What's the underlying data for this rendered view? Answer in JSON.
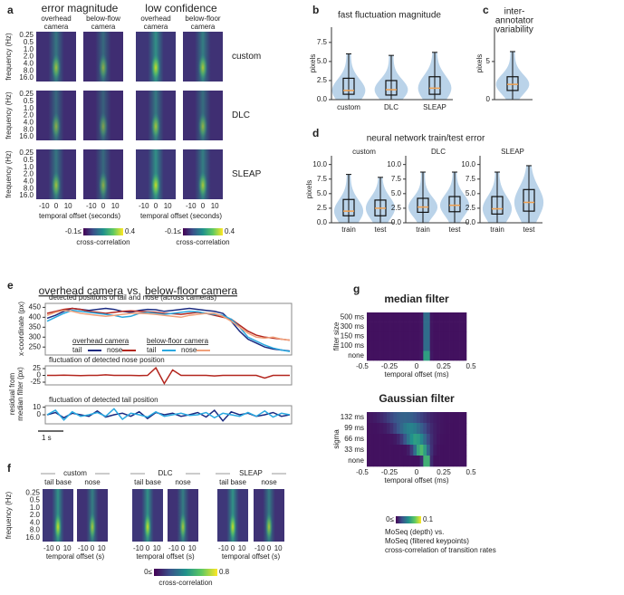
{
  "panel_a": {
    "label": "a",
    "headers": [
      "error magnitude",
      "low confidence"
    ],
    "columns": [
      [
        "overhead",
        "camera"
      ],
      [
        "below-flow",
        "camera"
      ],
      [
        "overhead",
        "camera"
      ],
      [
        "below-floor",
        "camera"
      ]
    ],
    "rows": [
      "custom",
      "DLC",
      "SLEAP"
    ],
    "y_label": "frequency (Hz)",
    "y_ticks": [
      "0.25",
      "0.5",
      "1.0",
      "2.0",
      "4.0",
      "8.0",
      "16.0"
    ],
    "x_ticks": [
      "-10",
      "0",
      "10"
    ],
    "x_label": "temporal offset (seconds)",
    "colorbar": {
      "min": "-0.1≤",
      "max": "0.4",
      "label": "cross-correlation"
    }
  },
  "panel_b": {
    "label": "b",
    "title": "fast fluctuation magnitude",
    "y_label": "pixels",
    "ylim": [
      0,
      9.5
    ],
    "yticks": [
      {
        "value": 0,
        "label": "0.0"
      },
      {
        "value": 2.5,
        "label": "2.5"
      },
      {
        "value": 5,
        "label": "5.0"
      },
      {
        "value": 7.5,
        "label": "7.5"
      }
    ],
    "categories": [
      "custom",
      "DLC",
      "SLEAP"
    ],
    "boxes": [
      {
        "q1": 0.7,
        "median": 1.2,
        "q3": 2.8,
        "low": 0,
        "high": 6
      },
      {
        "q1": 0.6,
        "median": 1.3,
        "q3": 2.5,
        "low": 0,
        "high": 5.8
      },
      {
        "q1": 0.7,
        "median": 1.5,
        "q3": 3,
        "low": 0,
        "high": 6.2
      }
    ]
  },
  "panel_c": {
    "label": "c",
    "title": [
      "inter-",
      "annotator",
      "variability"
    ],
    "y_label": "pixels",
    "ylim": [
      0,
      9.5
    ],
    "yticks": [
      0,
      5
    ],
    "boxes": [
      {
        "q1": 1.2,
        "median": 2,
        "q3": 3,
        "low": 0,
        "high": 6.3
      }
    ]
  },
  "panel_d": {
    "label": "d",
    "title": "neural network train/test error",
    "y_label": "pixels",
    "ylim": [
      0,
      11.5
    ],
    "yticks": [
      {
        "value": 0,
        "label": "0.0"
      },
      {
        "value": 2.5,
        "label": "2.5"
      },
      {
        "value": 5,
        "label": "5.0"
      },
      {
        "value": 7.5,
        "label": "7.5"
      },
      {
        "value": 10,
        "label": "10.0"
      }
    ],
    "subplots": [
      {
        "title": "custom",
        "categories": [
          "train",
          "test"
        ],
        "boxes": [
          {
            "q1": 1.2,
            "median": 2,
            "q3": 4,
            "low": 0,
            "high": 8.3
          },
          {
            "q1": 1.2,
            "median": 2.5,
            "q3": 3.9,
            "low": 0,
            "high": 7.8
          }
        ]
      },
      {
        "title": "DLC",
        "categories": [
          "train",
          "test"
        ],
        "boxes": [
          {
            "q1": 1.8,
            "median": 2.7,
            "q3": 4.2,
            "low": 0,
            "high": 8.7
          },
          {
            "q1": 1.9,
            "median": 3,
            "q3": 4.5,
            "low": 0,
            "high": 8.7
          }
        ]
      },
      {
        "title": "SLEAP",
        "categories": [
          "train",
          "test"
        ],
        "boxes": [
          {
            "q1": 1.5,
            "median": 2.4,
            "q3": 4.5,
            "low": 0,
            "high": 8.7
          },
          {
            "q1": 2,
            "median": 3.5,
            "q3": 5.7,
            "low": 0,
            "high": 9.8
          }
        ]
      }
    ]
  },
  "panel_e": {
    "label": "e",
    "title": [
      "overhead camera",
      "vs.",
      "below-floor camera"
    ],
    "positions": {
      "title": "detected positions of tail and nose (across cameras)",
      "y_label": "x-coordinate (px)",
      "ylim": [
        210,
        470
      ],
      "yticks": [
        250,
        300,
        350,
        400,
        450
      ],
      "legend": [
        {
          "name": "overhead camera",
          "entries": [
            "tail",
            "nose"
          ]
        },
        {
          "name": "below-floor camera",
          "entries": [
            "tail",
            "nose"
          ]
        }
      ],
      "series": [
        {
          "color": "#1a2a80",
          "values": [
            395,
            410,
            430,
            445,
            440,
            435,
            440,
            445,
            440,
            430,
            425,
            435,
            440,
            438,
            430,
            435,
            440,
            445,
            440,
            435,
            430,
            420,
            380,
            330,
            290,
            270,
            250,
            240,
            235,
            230
          ]
        },
        {
          "color": "#b3261e",
          "values": [
            420,
            430,
            440,
            445,
            440,
            430,
            425,
            420,
            425,
            430,
            432,
            430,
            428,
            425,
            420,
            418,
            415,
            420,
            425,
            420,
            410,
            400,
            390,
            360,
            330,
            310,
            300,
            295,
            290,
            285
          ]
        },
        {
          "color": "#29a8e0",
          "values": [
            380,
            400,
            420,
            435,
            430,
            425,
            420,
            415,
            410,
            400,
            405,
            420,
            425,
            420,
            415,
            420,
            425,
            430,
            428,
            420,
            415,
            410,
            390,
            350,
            300,
            280,
            260,
            245,
            235,
            228
          ]
        },
        {
          "color": "#f0a07a",
          "values": [
            410,
            425,
            435,
            430,
            420,
            415,
            410,
            405,
            410,
            415,
            420,
            420,
            418,
            415,
            410,
            405,
            400,
            410,
            415,
            420,
            420,
            405,
            380,
            350,
            320,
            300,
            295,
            300,
            290,
            285
          ]
        }
      ]
    },
    "nose": {
      "title": "fluctuation of detected nose position",
      "ylim": [
        -35,
        35
      ],
      "yticks": [
        25,
        0,
        -25
      ],
      "series": [
        {
          "color": "#b3261e",
          "values": [
            0,
            0,
            1,
            0,
            -1,
            0,
            0,
            2,
            0,
            0,
            0,
            -1,
            0,
            28,
            -30,
            20,
            0,
            0,
            0,
            0,
            -2,
            0,
            0,
            0,
            0,
            0,
            -10,
            0,
            0,
            0
          ]
        }
      ]
    },
    "tail": {
      "title": "fluctuation of detected tail position",
      "ylim": [
        -12,
        12
      ],
      "yticks": [
        10,
        0
      ],
      "series": [
        {
          "color": "#1a2a80",
          "values": [
            0,
            3,
            -4,
            2,
            0,
            -2,
            5,
            -3,
            0,
            2,
            -2,
            4,
            -5,
            3,
            0,
            2,
            -2,
            0,
            3,
            -3,
            6,
            -8,
            4,
            0,
            2,
            -2,
            0,
            3,
            -2,
            0
          ]
        },
        {
          "color": "#29a8e0",
          "values": [
            0,
            6,
            -7,
            4,
            -2,
            0,
            3,
            -2,
            8,
            -6,
            2,
            0,
            -3,
            4,
            -2,
            0,
            2,
            -1,
            0,
            3,
            -4,
            2,
            0,
            -2,
            3,
            -2,
            5,
            -3,
            2,
            0
          ]
        }
      ]
    },
    "residual_label": [
      "residual from",
      "median filter (px)"
    ],
    "scale_bar": "1 s"
  },
  "panel_f": {
    "label": "f",
    "groups": [
      "custom",
      "DLC",
      "SLEAP"
    ],
    "columns": [
      "tail base",
      "nose"
    ],
    "y_label": "frequency (Hz)",
    "y_ticks": [
      "0.25",
      "0.5",
      "1.0",
      "2.0",
      "4.0",
      "8.0",
      "16.0"
    ],
    "x_ticks": [
      "-10",
      "0",
      "10"
    ],
    "x_label": "temporal offset (s)",
    "colorbar": {
      "min": "0≤",
      "max": "0.8",
      "label": "cross-correlation"
    }
  },
  "panel_g": {
    "label": "g",
    "plots": [
      {
        "title": "median filter",
        "y_label": "filter size",
        "rows": [
          "500 ms",
          "300 ms",
          "150 ms",
          "100 ms",
          "none"
        ]
      },
      {
        "title": "Gaussian filter",
        "y_label": "sigma",
        "rows": [
          "132 ms",
          "99 ms",
          "66 ms",
          "33 ms",
          "none"
        ]
      }
    ],
    "x_ticks": [
      "-0.5",
      "-0.25",
      "0",
      "0.25",
      "0.5"
    ],
    "x_label": "temporal offset (ms)",
    "colorbar": {
      "min": "0≤",
      "max": "0.1"
    },
    "caption": [
      "MoSeq (depth) vs.",
      "MoSeq (filtered keypoints)",
      "cross-correlation of transition rates"
    ]
  }
}
